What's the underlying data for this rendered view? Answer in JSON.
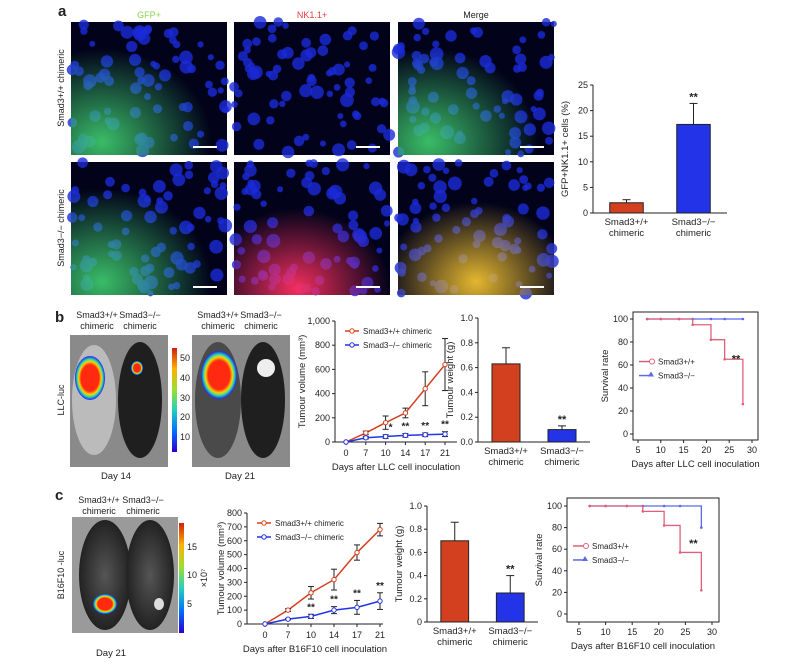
{
  "panel_labels": {
    "a": "a",
    "b": "b",
    "c": "c"
  },
  "panel_a": {
    "columns": [
      "GFP+",
      "NK1.1+",
      "Merge"
    ],
    "column_colors": [
      "#8fd14f",
      "#e83a3a",
      "#222222"
    ],
    "rows": [
      "Smad3+/+ chimeric",
      "Smad3−/− chimeric"
    ]
  },
  "panel_b": {
    "headers": [
      "Smad3+/+",
      "chimeric",
      "Smad3−/−",
      "chimeric"
    ],
    "side_label": "LLC-luc",
    "days": [
      "Day 14",
      "Day 21"
    ],
    "colorbar_ticks": [
      "50",
      "40",
      "30",
      "20",
      "10"
    ]
  },
  "panel_c": {
    "headers": [
      "Smad3+/+",
      "chimeric",
      "Smad3−/−",
      "chimeric"
    ],
    "side_label": "B16F10 -luc",
    "days": [
      "Day 21"
    ],
    "colorbar_ticks": [
      "15",
      "10",
      "5"
    ],
    "colorbar_unit": "×10⁷"
  },
  "colors": {
    "wt": "#d2401f",
    "ko": "#2233e8",
    "wt_surv": "#e0607a",
    "ko_surv": "#5a6ae8"
  },
  "chart_data": [
    {
      "id": "a_bar",
      "type": "bar",
      "categories": [
        "Smad3+/+",
        "Smad3−/−"
      ],
      "category_sub": [
        "chimeric",
        "chimeric"
      ],
      "values": [
        2.0,
        17.3
      ],
      "errors": [
        0.6,
        4.1
      ],
      "significance": [
        "",
        "**"
      ],
      "ylabel": "GFP+NK1.1+ cells (%)",
      "ylim": [
        0,
        25
      ],
      "yticks": [
        "0",
        "5",
        "10",
        "15",
        "20",
        "25"
      ],
      "ytick_values": [
        0,
        5,
        10,
        15,
        20,
        25
      ]
    },
    {
      "id": "b_line",
      "type": "line",
      "x": [
        0,
        7,
        10,
        14,
        17,
        21
      ],
      "xticks": [
        "0",
        "7",
        "10",
        "14",
        "17",
        "21"
      ],
      "series": [
        {
          "name": "Smad3+/+ chimeric",
          "values": [
            0,
            75,
            160,
            240,
            440,
            640
          ],
          "errors": [
            0,
            15,
            55,
            40,
            140,
            215
          ]
        },
        {
          "name": "Smad3−/− chimeric",
          "values": [
            0,
            35,
            45,
            55,
            60,
            65
          ],
          "errors": [
            0,
            10,
            15,
            15,
            15,
            20
          ]
        }
      ],
      "significance": [
        "",
        "",
        "*",
        "**",
        "**",
        "**"
      ],
      "xlabel": "Days after LLC cell inoculation",
      "ylabel": "Tumour volume (mm³)",
      "ylim": [
        0,
        1000
      ],
      "yticks": [
        "0",
        "200",
        "400",
        "600",
        "800",
        "1,000"
      ],
      "ytick_values": [
        0,
        200,
        400,
        600,
        800,
        1000
      ],
      "legend": "top-left"
    },
    {
      "id": "b_bar",
      "type": "bar",
      "categories": [
        "Smad3+/+",
        "Smad3−/−"
      ],
      "category_sub": [
        "chimeric",
        "chimeric"
      ],
      "values": [
        0.63,
        0.1
      ],
      "errors": [
        0.13,
        0.03
      ],
      "significance": [
        "",
        "**"
      ],
      "ylabel": "Tumour weight (g)",
      "ylim": [
        0,
        1.0
      ],
      "yticks": [
        "0.0",
        "0.2",
        "0.4",
        "0.6",
        "0.8",
        "1.0"
      ],
      "ytick_values": [
        0,
        0.2,
        0.4,
        0.6,
        0.8,
        1.0
      ]
    },
    {
      "id": "b_surv",
      "type": "line",
      "series": [
        {
          "name": "Smad3+/+",
          "x": [
            7,
            10,
            14,
            17,
            21,
            24,
            28
          ],
          "values": [
            100,
            100,
            100,
            95,
            82,
            65,
            26
          ]
        },
        {
          "name": "Smad3−/−",
          "x": [
            7,
            10,
            14,
            17,
            21,
            24,
            28
          ],
          "values": [
            100,
            100,
            100,
            100,
            100,
            100,
            100
          ]
        }
      ],
      "significance": "**",
      "xlabel": "Days after LLC cell inoculation",
      "ylabel": "Survival  rate",
      "xlim": [
        5,
        30
      ],
      "xticks": [
        "5",
        "10",
        "15",
        "20",
        "25",
        "30"
      ],
      "xtick_values": [
        5,
        10,
        15,
        20,
        25,
        30
      ],
      "ylim": [
        0,
        100
      ],
      "yticks": [
        "0",
        "20",
        "40",
        "60",
        "80",
        "100"
      ],
      "ytick_values": [
        0,
        20,
        40,
        60,
        80,
        100
      ],
      "legend": "left"
    },
    {
      "id": "c_line",
      "type": "line",
      "x": [
        0,
        7,
        10,
        14,
        17,
        21
      ],
      "xticks": [
        "0",
        "7",
        "10",
        "14",
        "17",
        "21"
      ],
      "series": [
        {
          "name": "Smad3+/+ chimeric",
          "values": [
            0,
            100,
            225,
            320,
            515,
            680
          ],
          "errors": [
            0,
            10,
            45,
            75,
            55,
            45
          ]
        },
        {
          "name": "Smad3−/− chimeric",
          "values": [
            0,
            35,
            55,
            100,
            120,
            165
          ],
          "errors": [
            0,
            5,
            15,
            25,
            50,
            60
          ]
        }
      ],
      "significance": [
        "",
        "",
        "**",
        "**",
        "**",
        "**"
      ],
      "xlabel": "Days after B16F10 cell inoculation",
      "ylabel": "Tumour volume (mm³)",
      "ylim": [
        0,
        800
      ],
      "yticks": [
        "0",
        "100",
        "200",
        "300",
        "400",
        "500",
        "600",
        "700",
        "800"
      ],
      "ytick_values": [
        0,
        100,
        200,
        300,
        400,
        500,
        600,
        700,
        800
      ],
      "legend": "top-left"
    },
    {
      "id": "c_bar",
      "type": "bar",
      "categories": [
        "Smad3+/+",
        "Smad3−/−"
      ],
      "category_sub": [
        "chimeric",
        "chimeric"
      ],
      "values": [
        0.7,
        0.25
      ],
      "errors": [
        0.16,
        0.15
      ],
      "significance": [
        "",
        "**"
      ],
      "ylabel": "Tumour weight (g)",
      "ylim": [
        0,
        1.0
      ],
      "yticks": [
        "0",
        "0.2",
        "0.4",
        "0.6",
        "0.8",
        "1.0"
      ],
      "ytick_values": [
        0,
        0.2,
        0.4,
        0.6,
        0.8,
        1.0
      ]
    },
    {
      "id": "c_surv",
      "type": "line",
      "series": [
        {
          "name": "Smad3+/+",
          "x": [
            7,
            10,
            14,
            17,
            21,
            24,
            28
          ],
          "values": [
            100,
            100,
            100,
            95,
            82,
            57,
            22
          ]
        },
        {
          "name": "Smad3−/−",
          "x": [
            7,
            10,
            14,
            17,
            21,
            24,
            28
          ],
          "values": [
            100,
            100,
            100,
            100,
            100,
            100,
            80
          ]
        }
      ],
      "significance": "**",
      "xlabel": "Days after B16F10 cell inoculation",
      "ylabel": "Survival  rate",
      "xlim": [
        5,
        30
      ],
      "xticks": [
        "5",
        "10",
        "15",
        "20",
        "25",
        "30"
      ],
      "xtick_values": [
        5,
        10,
        15,
        20,
        25,
        30
      ],
      "ylim": [
        0,
        100
      ],
      "yticks": [
        "0",
        "20",
        "40",
        "60",
        "80",
        "100"
      ],
      "ytick_values": [
        0,
        20,
        40,
        60,
        80,
        100
      ],
      "legend": "left"
    }
  ]
}
